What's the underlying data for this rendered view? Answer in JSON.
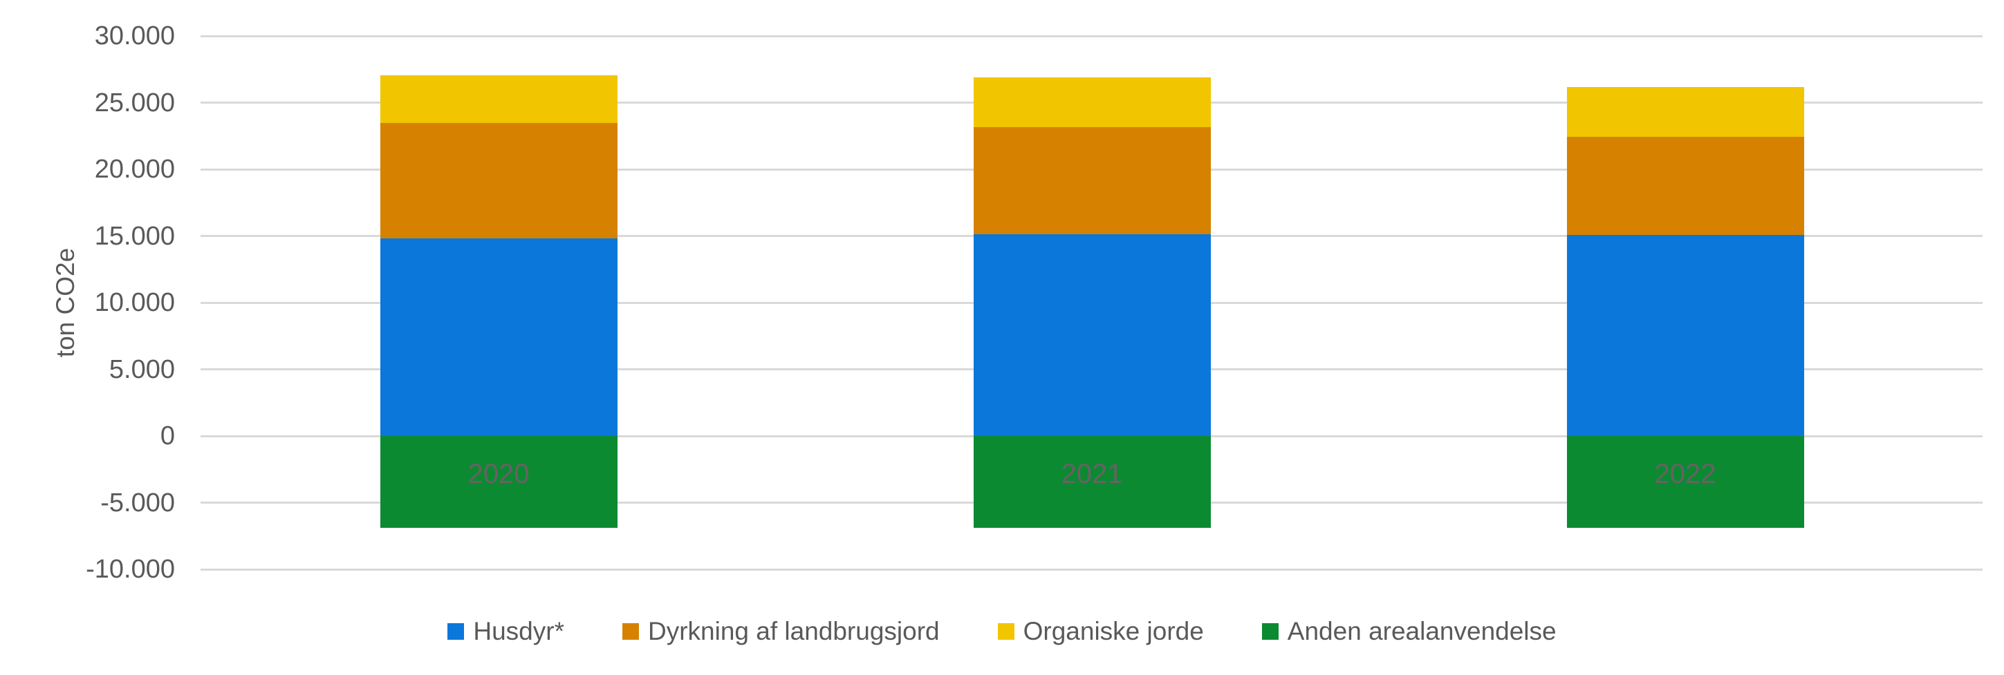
{
  "chart_data": {
    "type": "bar",
    "stacked": true,
    "title": "",
    "xlabel": "",
    "ylabel": "ton CO2e",
    "categories": [
      "2020",
      "2021",
      "2022"
    ],
    "series": [
      {
        "name": "Husdyr*",
        "color": "#0B77DB",
        "values": [
          14800,
          15150,
          15100
        ]
      },
      {
        "name": "Dyrkning af landbrugsjord",
        "color": "#D68200",
        "values": [
          8650,
          8050,
          7350
        ]
      },
      {
        "name": "Organiske jorde",
        "color": "#F1C500",
        "values": [
          3600,
          3750,
          3750
        ]
      },
      {
        "name": "Anden arealanvendelse",
        "color": "#0C8A32",
        "values": [
          -6900,
          -6900,
          -6900
        ]
      }
    ],
    "stack_totals_positive": [
      27050,
      26950,
      26200
    ],
    "ylim": [
      -10000,
      30000
    ],
    "ytick_step": 5000,
    "yticks": [
      {
        "value": 30000,
        "label": "30.000"
      },
      {
        "value": 25000,
        "label": "25.000"
      },
      {
        "value": 20000,
        "label": "20.000"
      },
      {
        "value": 15000,
        "label": "15.000"
      },
      {
        "value": 10000,
        "label": "10.000"
      },
      {
        "value": 5000,
        "label": "5.000"
      },
      {
        "value": 0,
        "label": "0"
      },
      {
        "value": -5000,
        "label": "-5.000"
      },
      {
        "value": -10000,
        "label": "-10.000"
      }
    ],
    "grid": true,
    "legend_position": "bottom",
    "colors": {
      "gridline": "#D9D9D9",
      "axis_text": "#595959",
      "category_label": "#696164",
      "background": "#FFFFFF"
    }
  }
}
